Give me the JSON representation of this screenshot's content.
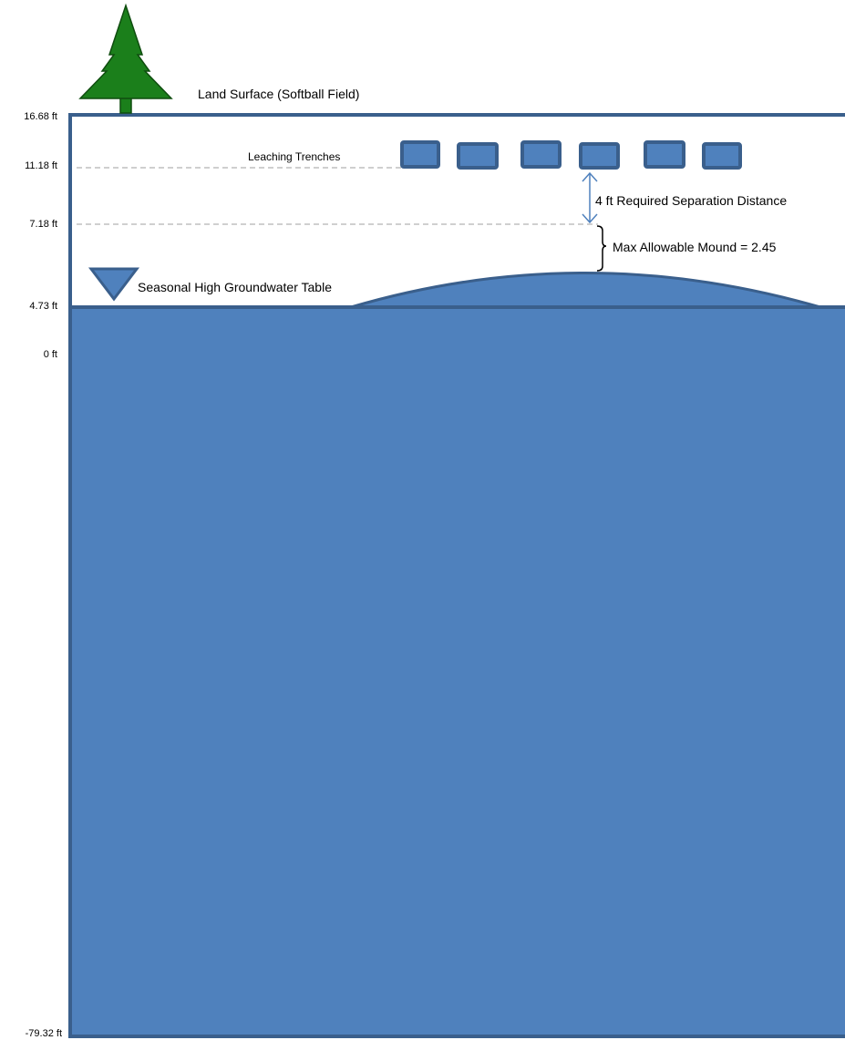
{
  "labels": {
    "land_surface": "Land Surface (Softball Field)",
    "leaching_trenches": "Leaching Trenches",
    "separation": "4 ft Required Separation Distance",
    "mound": "Max Allowable Mound = 2.45",
    "groundwater": "Seasonal High Groundwater Table"
  },
  "elevations": {
    "land_surface": "16.68 ft",
    "trench_bottom": "11.18 ft",
    "separation_limit": "7.18 ft",
    "groundwater": "4.73 ft",
    "datum": "0 ft",
    "bottom": "-79.32 ft"
  },
  "colors": {
    "water_fill": "#4f81bd",
    "outline": "#3a5f8c",
    "tree": "#1b7f1b",
    "dashed_line": "#bfbfbf",
    "arrow": "#4f81bd"
  },
  "icons": {
    "tree": "tree-icon",
    "water_table": "inverted-triangle-icon"
  }
}
